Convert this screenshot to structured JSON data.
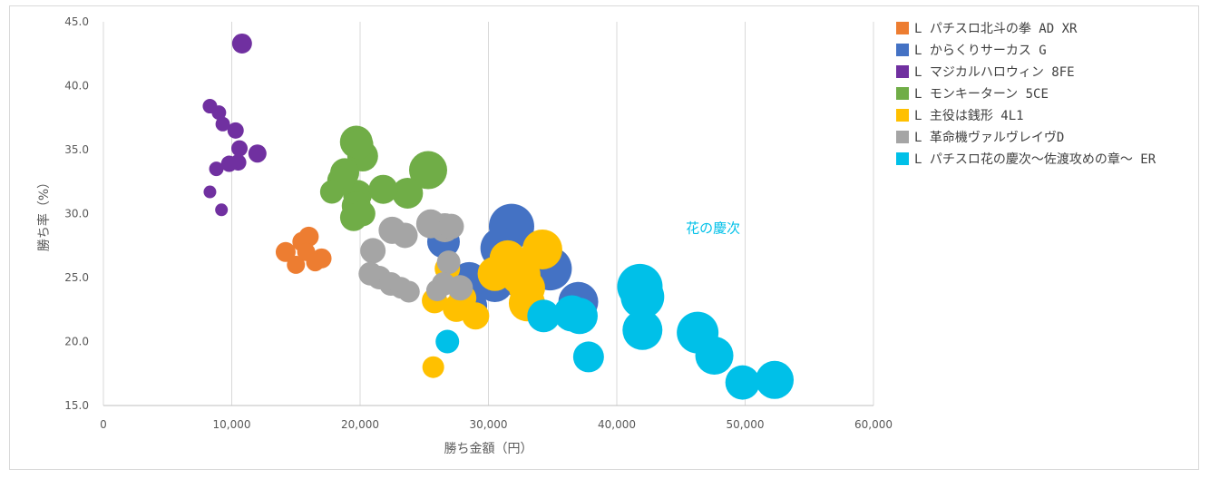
{
  "chart_data": {
    "type": "scatter",
    "title": "",
    "xlabel": "勝ち金額（円）",
    "ylabel": "勝ち率（%）",
    "xlim": [
      0,
      60000
    ],
    "ylim": [
      15,
      45
    ],
    "x_ticks": [
      0,
      10000,
      20000,
      30000,
      40000,
      50000,
      60000
    ],
    "x_tick_labels": [
      "0",
      "10,000",
      "20,000",
      "30,000",
      "40,000",
      "50,000",
      "60,000"
    ],
    "y_ticks": [
      15,
      20,
      25,
      30,
      35,
      40,
      45
    ],
    "y_tick_labels": [
      "15.0",
      "20.0",
      "25.0",
      "30.0",
      "35.0",
      "40.0",
      "45.0"
    ],
    "grid": "vertical",
    "legend_position": "right",
    "annotation": {
      "text": "花の慶次",
      "x": 47500,
      "y": 28.5,
      "color": "#00c0e8"
    },
    "series": [
      {
        "name": "L パチスロ北斗の拳 AD XR",
        "color": "#ed7d31",
        "points": [
          [
            14200,
            27.0,
            11
          ],
          [
            15000,
            26.0,
            10
          ],
          [
            15500,
            27.8,
            11
          ],
          [
            16000,
            28.2,
            11
          ],
          [
            15800,
            27.0,
            10
          ],
          [
            16500,
            26.2,
            10
          ],
          [
            17000,
            26.5,
            11
          ]
        ]
      },
      {
        "name": "L からくりサーカス G",
        "color": "#4472c4",
        "points": [
          [
            26500,
            27.8,
            18
          ],
          [
            28500,
            24.8,
            20
          ],
          [
            28700,
            22.8,
            17
          ],
          [
            30500,
            24.5,
            20
          ],
          [
            31000,
            27.3,
            23
          ],
          [
            31800,
            29.0,
            25
          ],
          [
            31300,
            25.0,
            19
          ],
          [
            32600,
            24.8,
            21
          ],
          [
            34800,
            25.7,
            24
          ],
          [
            37000,
            23.1,
            22
          ]
        ]
      },
      {
        "name": "L マジカルハロウィン 8FE",
        "color": "#7030a0",
        "points": [
          [
            8300,
            38.4,
            8
          ],
          [
            9000,
            37.9,
            8
          ],
          [
            9300,
            37.0,
            8
          ],
          [
            10300,
            36.5,
            9
          ],
          [
            10600,
            35.1,
            9
          ],
          [
            12000,
            34.7,
            10
          ],
          [
            10500,
            34.0,
            9
          ],
          [
            9800,
            33.9,
            9
          ],
          [
            8800,
            33.5,
            8
          ],
          [
            8300,
            31.7,
            7
          ],
          [
            9200,
            30.3,
            7
          ],
          [
            10800,
            43.3,
            11
          ]
        ]
      },
      {
        "name": "L モンキーターン 5CE",
        "color": "#70ad47",
        "points": [
          [
            19700,
            35.6,
            18
          ],
          [
            19900,
            35.4,
            16
          ],
          [
            20200,
            34.5,
            17
          ],
          [
            18800,
            33.2,
            16
          ],
          [
            18500,
            32.6,
            15
          ],
          [
            19800,
            31.5,
            16
          ],
          [
            17800,
            31.7,
            13
          ],
          [
            19700,
            30.6,
            16
          ],
          [
            21800,
            31.9,
            16
          ],
          [
            23700,
            31.6,
            17
          ],
          [
            25300,
            33.4,
            21
          ],
          [
            19500,
            29.7,
            15
          ],
          [
            20200,
            30.0,
            14
          ]
        ]
      },
      {
        "name": "L 主役は銭形 4L1",
        "color": "#ffc000",
        "points": [
          [
            26800,
            25.7,
            14
          ],
          [
            25800,
            23.2,
            14
          ],
          [
            27500,
            22.6,
            15
          ],
          [
            28000,
            23.4,
            15
          ],
          [
            29000,
            22.0,
            15
          ],
          [
            30500,
            25.3,
            19
          ],
          [
            31500,
            26.5,
            20
          ],
          [
            32500,
            25.2,
            22
          ],
          [
            33000,
            24.2,
            20
          ],
          [
            33000,
            23.0,
            20
          ],
          [
            34200,
            27.2,
            22
          ],
          [
            25700,
            18.0,
            12
          ]
        ]
      },
      {
        "name": "L 革命機ヴァルヴレイヴD",
        "color": "#a5a5a5",
        "points": [
          [
            21000,
            27.1,
            14
          ],
          [
            22500,
            28.7,
            15
          ],
          [
            23500,
            28.3,
            14
          ],
          [
            25500,
            29.2,
            16
          ],
          [
            26600,
            28.9,
            16
          ],
          [
            27100,
            29.0,
            14
          ],
          [
            26900,
            26.2,
            13
          ],
          [
            26500,
            24.5,
            13
          ],
          [
            26000,
            24.0,
            12
          ],
          [
            27800,
            24.2,
            14
          ],
          [
            20800,
            25.3,
            13
          ],
          [
            21500,
            25.0,
            13
          ],
          [
            22400,
            24.5,
            13
          ],
          [
            23200,
            24.2,
            12
          ],
          [
            23800,
            23.9,
            12
          ]
        ]
      },
      {
        "name": "L パチスロ花の慶次〜佐渡攻めの章〜 ER",
        "color": "#00c0e8",
        "points": [
          [
            26800,
            20.0,
            13
          ],
          [
            36500,
            22.2,
            20
          ],
          [
            37100,
            22.0,
            20
          ],
          [
            34300,
            22.0,
            18
          ],
          [
            37800,
            18.8,
            17
          ],
          [
            41800,
            24.3,
            25
          ],
          [
            41900,
            24.2,
            23
          ],
          [
            42000,
            23.5,
            24
          ],
          [
            42000,
            20.9,
            22
          ],
          [
            46300,
            20.7,
            23
          ],
          [
            47600,
            18.9,
            21
          ],
          [
            49800,
            16.8,
            19
          ],
          [
            52300,
            17.0,
            21
          ]
        ]
      }
    ]
  }
}
